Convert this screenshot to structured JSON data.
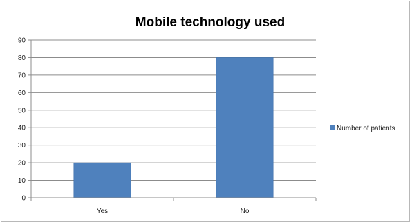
{
  "chart_data": {
    "type": "bar",
    "title": "Mobile technology used",
    "categories": [
      "Yes",
      "No"
    ],
    "series": [
      {
        "name": "Number of patients",
        "values": [
          20,
          80
        ],
        "color": "#4f81bd"
      }
    ],
    "ylim": [
      0,
      90
    ],
    "yticks": [
      0,
      10,
      20,
      30,
      40,
      50,
      60,
      70,
      80,
      90
    ],
    "xlabel": "",
    "ylabel": "",
    "grid": true,
    "legend": "right"
  }
}
